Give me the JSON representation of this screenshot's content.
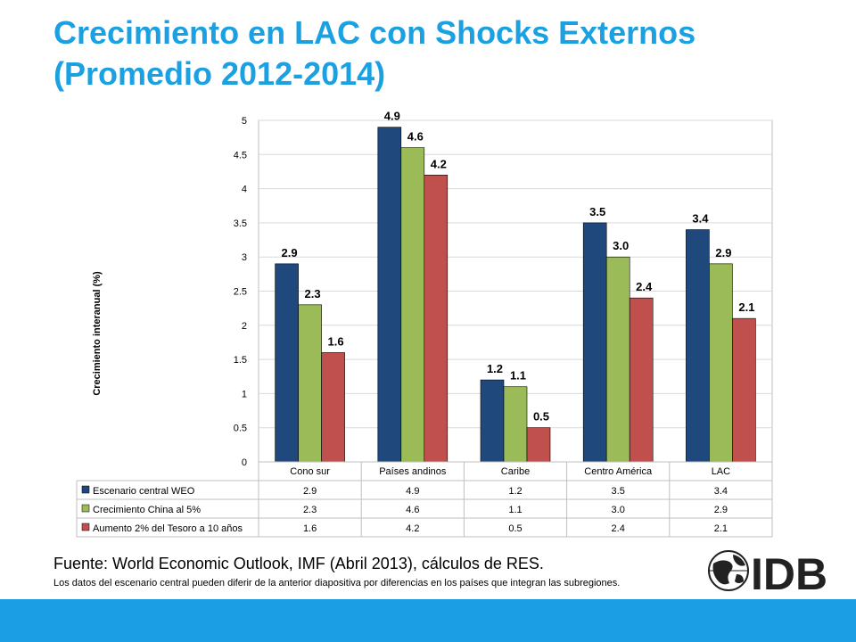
{
  "title": {
    "line1": "Crecimiento en LAC con Shocks Externos",
    "line2": "(Promedio 2012-2014)"
  },
  "colors": {
    "title": "#1ba1e2",
    "series1": "#1f497d",
    "series2": "#9bbb59",
    "series3": "#c0504d",
    "bar": "#1b9ee3"
  },
  "chart_data": {
    "type": "bar",
    "ylabel": "Crecimiento interanual (%)",
    "ylim": [
      0,
      5
    ],
    "yticks": [
      "0",
      "0.5",
      "1",
      "1.5",
      "2",
      "2.5",
      "3",
      "3.5",
      "4",
      "4.5",
      "5"
    ],
    "grid": true,
    "legend": "data-table",
    "categories": [
      "Cono sur",
      "Países andinos",
      "Caribe",
      "Centro América",
      "LAC"
    ],
    "series": [
      {
        "name": "Escenario central WEO",
        "values": [
          2.9,
          4.9,
          1.2,
          3.5,
          3.4
        ],
        "labels": [
          "2.9",
          "4.9",
          "1.2",
          "3.5",
          "3.4"
        ]
      },
      {
        "name": "Crecimiento China al 5%",
        "values": [
          2.3,
          4.6,
          1.1,
          3.0,
          2.9
        ],
        "labels": [
          "2.3",
          "4.6",
          "1.1",
          "3.0",
          "2.9"
        ]
      },
      {
        "name": "Aumento 2% del Tesoro a 10 años",
        "values": [
          1.6,
          4.2,
          0.5,
          2.4,
          2.1
        ],
        "labels": [
          "1.6",
          "4.2",
          "0.5",
          "2.4",
          "2.1"
        ]
      }
    ]
  },
  "source": "Fuente: World Economic Outlook, IMF (Abril 2013), cálculos de RES.",
  "note": "Los datos del escenario central pueden diferir de la anterior diapositiva por diferencias en los países que integran las subregiones.",
  "logo": {
    "text": "IDB",
    "icon": "globe-icon"
  }
}
